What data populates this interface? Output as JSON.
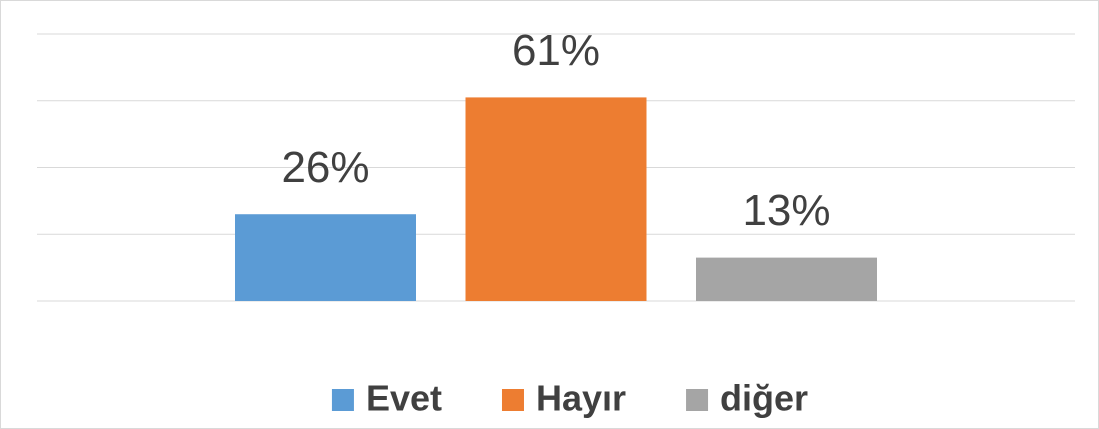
{
  "chart_data": {
    "type": "bar",
    "categories": [
      "Evet",
      "Hayır",
      "diğer"
    ],
    "values": [
      26,
      61,
      13
    ],
    "value_labels": [
      "26%",
      "61%",
      "13%"
    ],
    "colors": [
      "#5b9bd5",
      "#ed7d31",
      "#a5a5a5"
    ],
    "ylim": [
      0,
      80
    ],
    "yticks": [
      0,
      20,
      40,
      60,
      80
    ],
    "grid": true,
    "legend": "bottom"
  }
}
